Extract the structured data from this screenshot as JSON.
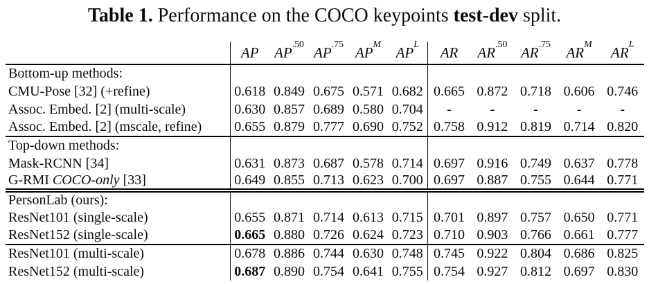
{
  "caption": {
    "parts": [
      {
        "text": "Table 1. ",
        "bold": true
      },
      {
        "text": "Performance on the COCO keypoints ",
        "bold": false
      },
      {
        "text": "test-dev",
        "bold": true
      },
      {
        "text": " split.",
        "bold": false
      }
    ]
  },
  "colors": {
    "text": "#0b0b0b",
    "background": "#ffffff",
    "rule": "#000000"
  },
  "table": {
    "columns": [
      {
        "base": "AP",
        "sup": ""
      },
      {
        "base": "AP",
        "sup": ".50",
        "sup_italic": false
      },
      {
        "base": "AP",
        "sup": ".75",
        "sup_italic": false
      },
      {
        "base": "AP",
        "sup": "M",
        "sup_italic": true
      },
      {
        "base": "AP",
        "sup": "L",
        "sup_italic": true
      },
      {
        "base": "AR",
        "sup": ""
      },
      {
        "base": "AR",
        "sup": ".50",
        "sup_italic": false
      },
      {
        "base": "AR",
        "sup": ".75",
        "sup_italic": false
      },
      {
        "base": "AR",
        "sup": "M",
        "sup_italic": true
      },
      {
        "base": "AR",
        "sup": "L",
        "sup_italic": true
      }
    ],
    "rows": [
      {
        "type": "section",
        "label": "Bottom-up methods:",
        "rule": "none"
      },
      {
        "type": "data",
        "label": "CMU-Pose [32] (+refine)",
        "values": [
          "0.618",
          "0.849",
          "0.675",
          "0.571",
          "0.682",
          "0.665",
          "0.872",
          "0.718",
          "0.606",
          "0.746"
        ],
        "bold": []
      },
      {
        "type": "data",
        "label": "Assoc. Embed. [2] (multi-scale)",
        "values": [
          "0.630",
          "0.857",
          "0.689",
          "0.580",
          "0.704",
          "-",
          "-",
          "-",
          "-",
          "-"
        ],
        "bold": []
      },
      {
        "type": "data",
        "label": "Assoc. Embed. [2] (mscale, refine)",
        "values": [
          "0.655",
          "0.879",
          "0.777",
          "0.690",
          "0.752",
          "0.758",
          "0.912",
          "0.819",
          "0.714",
          "0.820"
        ],
        "bold": []
      },
      {
        "type": "section",
        "label": "Top-down methods:",
        "rule": "single"
      },
      {
        "type": "data",
        "label": "Mask-RCNN [34]",
        "values": [
          "0.631",
          "0.873",
          "0.687",
          "0.578",
          "0.714",
          "0.697",
          "0.916",
          "0.749",
          "0.637",
          "0.778"
        ],
        "bold": []
      },
      {
        "type": "data",
        "label": "G-RMI COCO-only [33]",
        "label_parts": [
          {
            "text": "G-RMI "
          },
          {
            "text": "COCO-only",
            "italic": true
          },
          {
            "text": " [33]"
          }
        ],
        "values": [
          "0.649",
          "0.855",
          "0.713",
          "0.623",
          "0.700",
          "0.697",
          "0.887",
          "0.755",
          "0.644",
          "0.771"
        ],
        "bold": []
      },
      {
        "type": "section",
        "label": "PersonLab (ours):",
        "rule": "double"
      },
      {
        "type": "data",
        "label": "ResNet101 (single-scale)",
        "values": [
          "0.655",
          "0.871",
          "0.714",
          "0.613",
          "0.715",
          "0.701",
          "0.897",
          "0.757",
          "0.650",
          "0.771"
        ],
        "bold": []
      },
      {
        "type": "data",
        "label": "ResNet152 (single-scale)",
        "values": [
          "0.665",
          "0.880",
          "0.726",
          "0.624",
          "0.723",
          "0.710",
          "0.903",
          "0.766",
          "0.661",
          "0.777"
        ],
        "bold": [
          0
        ]
      },
      {
        "type": "data",
        "label": "ResNet101 (multi-scale)",
        "rule": "single",
        "values": [
          "0.678",
          "0.886",
          "0.744",
          "0.630",
          "0.748",
          "0.745",
          "0.922",
          "0.804",
          "0.686",
          "0.825"
        ],
        "bold": []
      },
      {
        "type": "data",
        "label": "ResNet152 (multi-scale)",
        "values": [
          "0.687",
          "0.890",
          "0.754",
          "0.641",
          "0.755",
          "0.754",
          "0.927",
          "0.812",
          "0.697",
          "0.830"
        ],
        "bold": [
          0
        ]
      }
    ]
  }
}
